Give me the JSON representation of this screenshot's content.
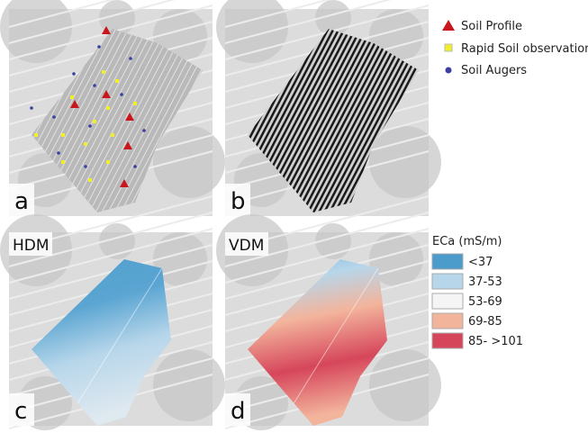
{
  "panels": [
    {
      "letter": "a"
    },
    {
      "letter": "b"
    },
    {
      "letter": "c",
      "method": "HDM"
    },
    {
      "letter": "d",
      "method": "VDM"
    }
  ],
  "sampling_legend": [
    {
      "label": "Soil Profile"
    },
    {
      "label": "Rapid Soil observation"
    },
    {
      "label": "Soil Augers"
    }
  ],
  "eca_legend": {
    "title": "ECa (mS/m)",
    "classes": [
      {
        "label": "<37",
        "color": "#4b9bcb"
      },
      {
        "label": "37-53",
        "color": "#b7d6ea"
      },
      {
        "label": "53-69",
        "color": "#f5f5f5"
      },
      {
        "label": "69-85",
        "color": "#f3b49c"
      },
      {
        "label": "85- >101",
        "color": "#d6465b"
      }
    ]
  }
}
